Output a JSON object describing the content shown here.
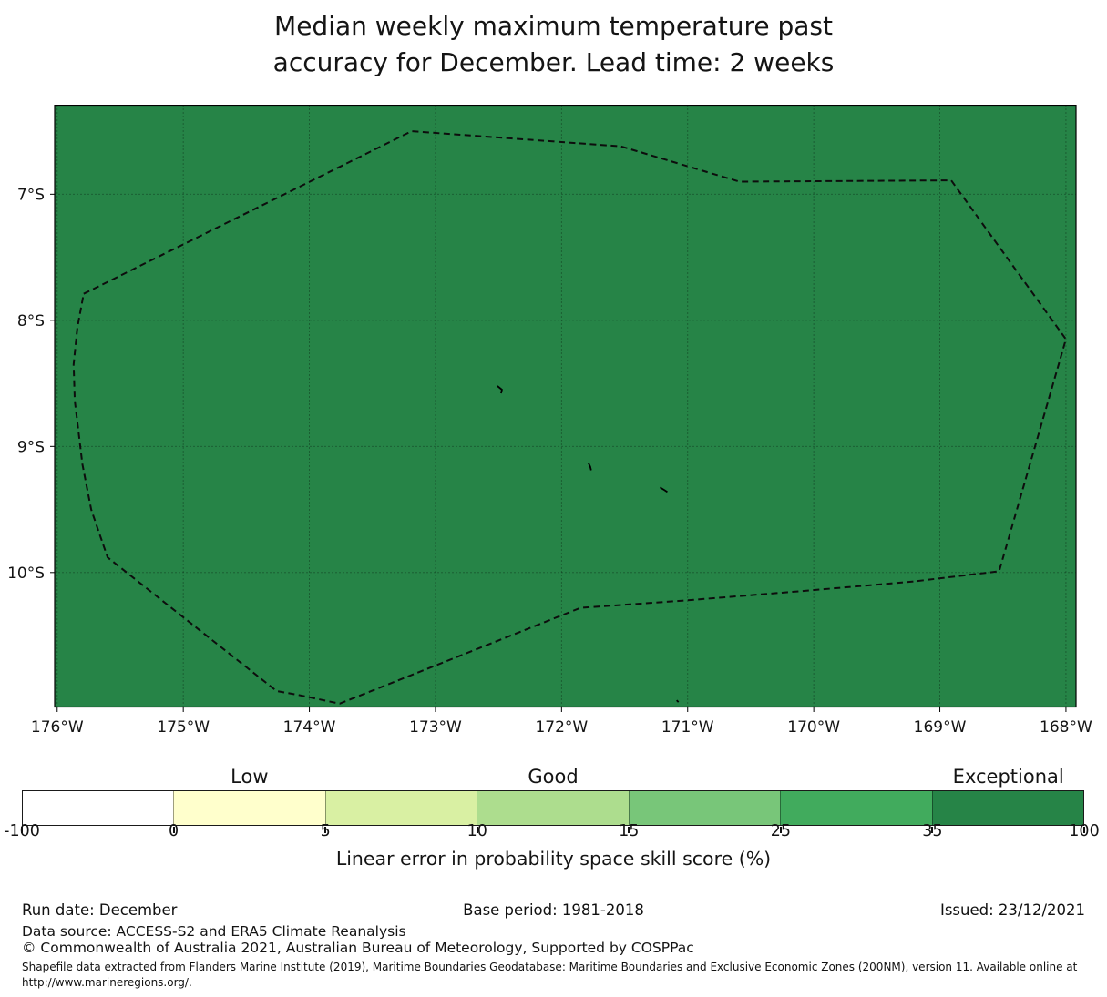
{
  "title": {
    "line1": "Median weekly maximum temperature past",
    "line2": "accuracy for December. Lead time: 2 weeks"
  },
  "chart_data": {
    "type": "map",
    "projection": "PlateCarree",
    "region": "Tokelau EEZ area",
    "xlim": [
      -176.02,
      -167.92
    ],
    "ylim": [
      -11.07,
      -6.29
    ],
    "lon_gridlines": [
      -176,
      -175,
      -174,
      -173,
      -172,
      -171,
      -170,
      -169,
      -168
    ],
    "lat_gridlines": [
      -7,
      -8,
      -9,
      -10
    ],
    "lon_tick_labels": [
      "176°W",
      "175°W",
      "174°W",
      "173°W",
      "172°W",
      "171°W",
      "170°W",
      "169°W",
      "168°W"
    ],
    "lat_tick_labels": [
      "7°S",
      "8°S",
      "9°S",
      "10°S"
    ],
    "grid": true,
    "ocean_fill_color": "#268447",
    "ocean_fill_meaning": "skill score in 35-100 bin (Exceptional)",
    "boundary_style": "dashed",
    "eez_boundary_lonlat": [
      [
        -175.79,
        -7.79
      ],
      [
        -173.19,
        -6.5
      ],
      [
        -171.53,
        -6.62
      ],
      [
        -170.59,
        -6.9
      ],
      [
        -168.91,
        -6.89
      ],
      [
        -168.0,
        -8.15
      ],
      [
        -168.53,
        -9.99
      ],
      [
        -169.2,
        -10.07
      ],
      [
        -170.01,
        -10.14
      ],
      [
        -171.0,
        -10.22
      ],
      [
        -171.85,
        -10.28
      ],
      [
        -173.76,
        -11.04
      ],
      [
        -174.09,
        -10.97
      ],
      [
        -174.26,
        -10.94
      ],
      [
        -175.6,
        -9.88
      ],
      [
        -175.68,
        -9.65
      ],
      [
        -175.73,
        -9.5
      ],
      [
        -175.8,
        -9.14
      ],
      [
        -175.83,
        -8.89
      ],
      [
        -175.86,
        -8.64
      ],
      [
        -175.87,
        -8.35
      ],
      [
        -175.84,
        -8.06
      ]
    ],
    "island_marks": [
      {
        "lon": -172.48,
        "lat": -8.55,
        "shape": [
          [
            -4,
            -4
          ],
          [
            1,
            0
          ],
          [
            0,
            4
          ]
        ]
      },
      {
        "lon": -171.78,
        "lat": -9.16,
        "shape": [
          [
            -1,
            -4
          ],
          [
            1,
            0
          ],
          [
            2,
            4
          ]
        ]
      },
      {
        "lon": -171.19,
        "lat": -9.34,
        "shape": [
          [
            -4,
            -2
          ],
          [
            1,
            1
          ],
          [
            4,
            3
          ]
        ]
      },
      {
        "lon": -171.08,
        "lat": -11.02,
        "shape": [
          [
            -1,
            -1
          ],
          [
            1,
            1
          ]
        ]
      }
    ]
  },
  "colorbar": {
    "category_labels": [
      "Low",
      "Good",
      "Exceptional"
    ],
    "category_label_segments": [
      1,
      3,
      6
    ],
    "tick_labels": [
      "-100",
      "0",
      "5",
      "10",
      "15",
      "25",
      "35",
      "100"
    ],
    "segment_colors": [
      "#ffffff",
      "#ffffcc",
      "#d9f0a3",
      "#addd8e",
      "#78c679",
      "#41ab5d",
      "#268447"
    ],
    "caption": "Linear error in probability space skill score (%)"
  },
  "footer": {
    "run_date": "Run date: December",
    "base_period": "Base period: 1981-2018",
    "issued": "Issued: 23/12/2021",
    "data_source": "Data source: ACCESS-S2 and ERA5 Climate Reanalysis",
    "copyright": "© Commonwealth of Australia 2021, Australian Bureau of Meteorology, Supported by COSPPac",
    "shapefile_note": "Shapefile data extracted from Flanders Marine Institute (2019), Maritime Boundaries Geodatabase: Maritime Boundaries and Exclusive Economic Zones (200NM), version 11. Available online at http://www.marineregions.org/."
  }
}
